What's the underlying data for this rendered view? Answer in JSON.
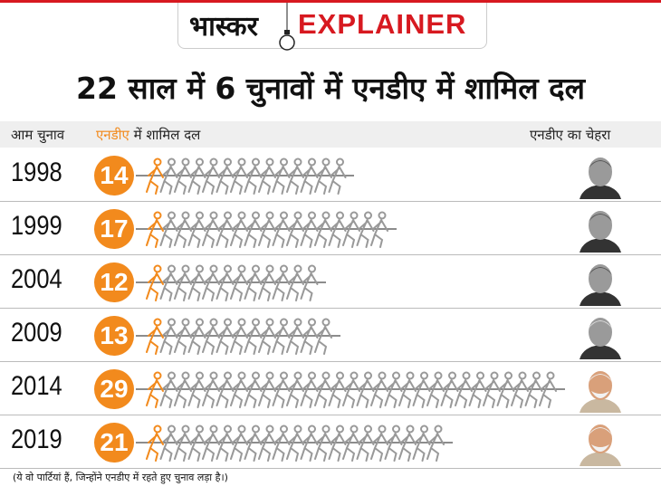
{
  "logo": {
    "brand": "भास्कर",
    "word": "EXPLAINER"
  },
  "title": "22 साल में 6 चुनावों में एनडीए में शामिल दल",
  "header": {
    "col1": "आम चुनाव",
    "col2_highlight": "एनडीए",
    "col2_rest": " में शामिल दल",
    "col3": "एनडीए का चेहरा"
  },
  "colors": {
    "accent": "#f28a1d",
    "brand_red": "#d71920",
    "figure_gray": "#999999"
  },
  "chart_data": {
    "type": "pictogram",
    "categories": [
      "1998",
      "1999",
      "2004",
      "2009",
      "2014",
      "2019"
    ],
    "values": [
      14,
      17,
      12,
      13,
      29,
      21
    ],
    "labels": [
      "14",
      "17",
      "12",
      "13",
      "29",
      "21"
    ]
  },
  "faces": [
    "face-1",
    "face-1",
    "face-1",
    "face-2",
    "face-3",
    "face-3"
  ],
  "footnote": "(ये वो पार्टियां हैं, जिन्होंने एनडीए में रहते हुए चुनाव लड़ा है।)"
}
